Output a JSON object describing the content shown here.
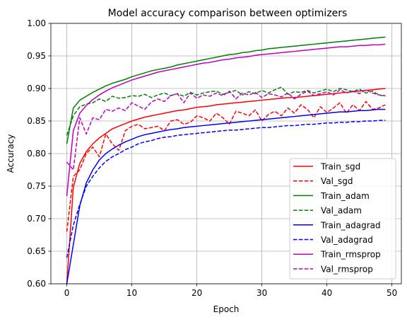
{
  "chart_data": {
    "type": "line",
    "title": "Model accuracy comparison between optimizers",
    "xlabel": "Epoch",
    "ylabel": "Accuracy",
    "xlim": [
      -2.45,
      51.45
    ],
    "ylim": [
      0.6,
      1.0
    ],
    "xticks": [
      "0",
      "10",
      "20",
      "30",
      "40",
      "50"
    ],
    "xtick_values": [
      0,
      10,
      20,
      30,
      40,
      50
    ],
    "yticks": [
      "0.60",
      "0.65",
      "0.70",
      "0.75",
      "0.80",
      "0.85",
      "0.90",
      "0.95",
      "1.00"
    ],
    "ytick_values": [
      0.6,
      0.65,
      0.7,
      0.75,
      0.8,
      0.85,
      0.9,
      0.95,
      1.0
    ],
    "grid": true,
    "legend_position": "lower-right",
    "x": [
      0,
      1,
      2,
      3,
      4,
      5,
      6,
      7,
      8,
      9,
      10,
      11,
      12,
      13,
      14,
      15,
      16,
      17,
      18,
      19,
      20,
      21,
      22,
      23,
      24,
      25,
      26,
      27,
      28,
      29,
      30,
      31,
      32,
      33,
      34,
      35,
      36,
      37,
      38,
      39,
      40,
      41,
      42,
      43,
      44,
      45,
      46,
      47,
      48,
      49
    ],
    "series": [
      {
        "name": "Train_sgd",
        "color": "#ff0000",
        "dash": "solid",
        "values": [
          0.6,
          0.748,
          0.785,
          0.803,
          0.815,
          0.824,
          0.831,
          0.838,
          0.842,
          0.846,
          0.85,
          0.853,
          0.856,
          0.858,
          0.86,
          0.862,
          0.864,
          0.866,
          0.867,
          0.869,
          0.871,
          0.872,
          0.873,
          0.875,
          0.876,
          0.877,
          0.878,
          0.879,
          0.88,
          0.881,
          0.882,
          0.883,
          0.884,
          0.885,
          0.886,
          0.886,
          0.887,
          0.888,
          0.889,
          0.89,
          0.891,
          0.892,
          0.893,
          0.894,
          0.895,
          0.896,
          0.897,
          0.898,
          0.899,
          0.9
        ]
      },
      {
        "name": "Val_sgd",
        "color": "#ff0000",
        "dash": "dashed",
        "values": [
          0.68,
          0.765,
          0.775,
          0.8,
          0.81,
          0.795,
          0.83,
          0.815,
          0.805,
          0.835,
          0.842,
          0.845,
          0.838,
          0.84,
          0.842,
          0.835,
          0.85,
          0.852,
          0.845,
          0.848,
          0.858,
          0.855,
          0.85,
          0.862,
          0.855,
          0.845,
          0.865,
          0.862,
          0.858,
          0.867,
          0.85,
          0.86,
          0.865,
          0.858,
          0.87,
          0.862,
          0.875,
          0.868,
          0.855,
          0.872,
          0.863,
          0.87,
          0.878,
          0.862,
          0.875,
          0.866,
          0.88,
          0.868,
          0.87,
          0.875
        ]
      },
      {
        "name": "Train_adam",
        "color": "#008000",
        "dash": "solid",
        "values": [
          0.815,
          0.87,
          0.882,
          0.888,
          0.894,
          0.899,
          0.904,
          0.908,
          0.911,
          0.914,
          0.918,
          0.921,
          0.924,
          0.927,
          0.929,
          0.931,
          0.933,
          0.936,
          0.938,
          0.94,
          0.942,
          0.944,
          0.946,
          0.948,
          0.95,
          0.952,
          0.953,
          0.955,
          0.956,
          0.958,
          0.959,
          0.961,
          0.962,
          0.963,
          0.964,
          0.965,
          0.966,
          0.967,
          0.968,
          0.969,
          0.97,
          0.971,
          0.972,
          0.973,
          0.974,
          0.975,
          0.976,
          0.977,
          0.978,
          0.979
        ]
      },
      {
        "name": "Val_adam",
        "color": "#008000",
        "dash": "dashed",
        "values": [
          0.828,
          0.858,
          0.872,
          0.876,
          0.878,
          0.884,
          0.88,
          0.888,
          0.885,
          0.886,
          0.889,
          0.888,
          0.891,
          0.886,
          0.89,
          0.893,
          0.889,
          0.892,
          0.888,
          0.894,
          0.89,
          0.893,
          0.895,
          0.896,
          0.891,
          0.894,
          0.897,
          0.89,
          0.895,
          0.892,
          0.897,
          0.893,
          0.898,
          0.902,
          0.891,
          0.895,
          0.894,
          0.897,
          0.893,
          0.896,
          0.899,
          0.895,
          0.9,
          0.898,
          0.895,
          0.899,
          0.893,
          0.896,
          0.89,
          0.888
        ]
      },
      {
        "name": "Train_adagrad",
        "color": "#0000ff",
        "dash": "solid",
        "values": [
          0.6,
          0.66,
          0.72,
          0.755,
          0.775,
          0.79,
          0.8,
          0.807,
          0.813,
          0.818,
          0.822,
          0.826,
          0.829,
          0.831,
          0.833,
          0.835,
          0.837,
          0.838,
          0.84,
          0.841,
          0.842,
          0.843,
          0.844,
          0.845,
          0.846,
          0.847,
          0.848,
          0.849,
          0.85,
          0.851,
          0.852,
          0.853,
          0.854,
          0.855,
          0.856,
          0.857,
          0.858,
          0.859,
          0.86,
          0.861,
          0.862,
          0.863,
          0.864,
          0.864,
          0.865,
          0.866,
          0.866,
          0.867,
          0.868,
          0.868
        ]
      },
      {
        "name": "Val_adagrad",
        "color": "#0000ff",
        "dash": "dashed",
        "values": [
          0.64,
          0.69,
          0.722,
          0.75,
          0.765,
          0.778,
          0.788,
          0.795,
          0.8,
          0.806,
          0.81,
          0.815,
          0.818,
          0.82,
          0.823,
          0.825,
          0.826,
          0.828,
          0.829,
          0.83,
          0.831,
          0.832,
          0.833,
          0.834,
          0.835,
          0.836,
          0.836,
          0.837,
          0.838,
          0.839,
          0.84,
          0.84,
          0.841,
          0.842,
          0.843,
          0.843,
          0.844,
          0.845,
          0.845,
          0.846,
          0.847,
          0.847,
          0.848,
          0.848,
          0.849,
          0.849,
          0.85,
          0.85,
          0.851,
          0.851
        ]
      },
      {
        "name": "Train_rmsprop",
        "color": "#bf00bf",
        "dash": "solid",
        "values": [
          0.735,
          0.835,
          0.862,
          0.874,
          0.883,
          0.89,
          0.896,
          0.901,
          0.905,
          0.909,
          0.913,
          0.916,
          0.919,
          0.922,
          0.925,
          0.927,
          0.929,
          0.931,
          0.933,
          0.935,
          0.937,
          0.939,
          0.94,
          0.942,
          0.944,
          0.945,
          0.947,
          0.948,
          0.949,
          0.951,
          0.952,
          0.953,
          0.954,
          0.955,
          0.956,
          0.957,
          0.958,
          0.959,
          0.96,
          0.961,
          0.962,
          0.963,
          0.964,
          0.964,
          0.965,
          0.966,
          0.966,
          0.967,
          0.967,
          0.968
        ]
      },
      {
        "name": "Val_rmsprop",
        "color": "#bf00bf",
        "dash": "dashed",
        "values": [
          0.787,
          0.775,
          0.855,
          0.83,
          0.855,
          0.852,
          0.868,
          0.865,
          0.87,
          0.866,
          0.878,
          0.873,
          0.868,
          0.879,
          0.884,
          0.88,
          0.889,
          0.892,
          0.878,
          0.893,
          0.885,
          0.89,
          0.888,
          0.893,
          0.889,
          0.896,
          0.884,
          0.893,
          0.89,
          0.894,
          0.886,
          0.892,
          0.89,
          0.887,
          0.893,
          0.884,
          0.891,
          0.896,
          0.889,
          0.892,
          0.895,
          0.89,
          0.898,
          0.893,
          0.896,
          0.892,
          0.898,
          0.893,
          0.89,
          0.889
        ]
      }
    ]
  }
}
